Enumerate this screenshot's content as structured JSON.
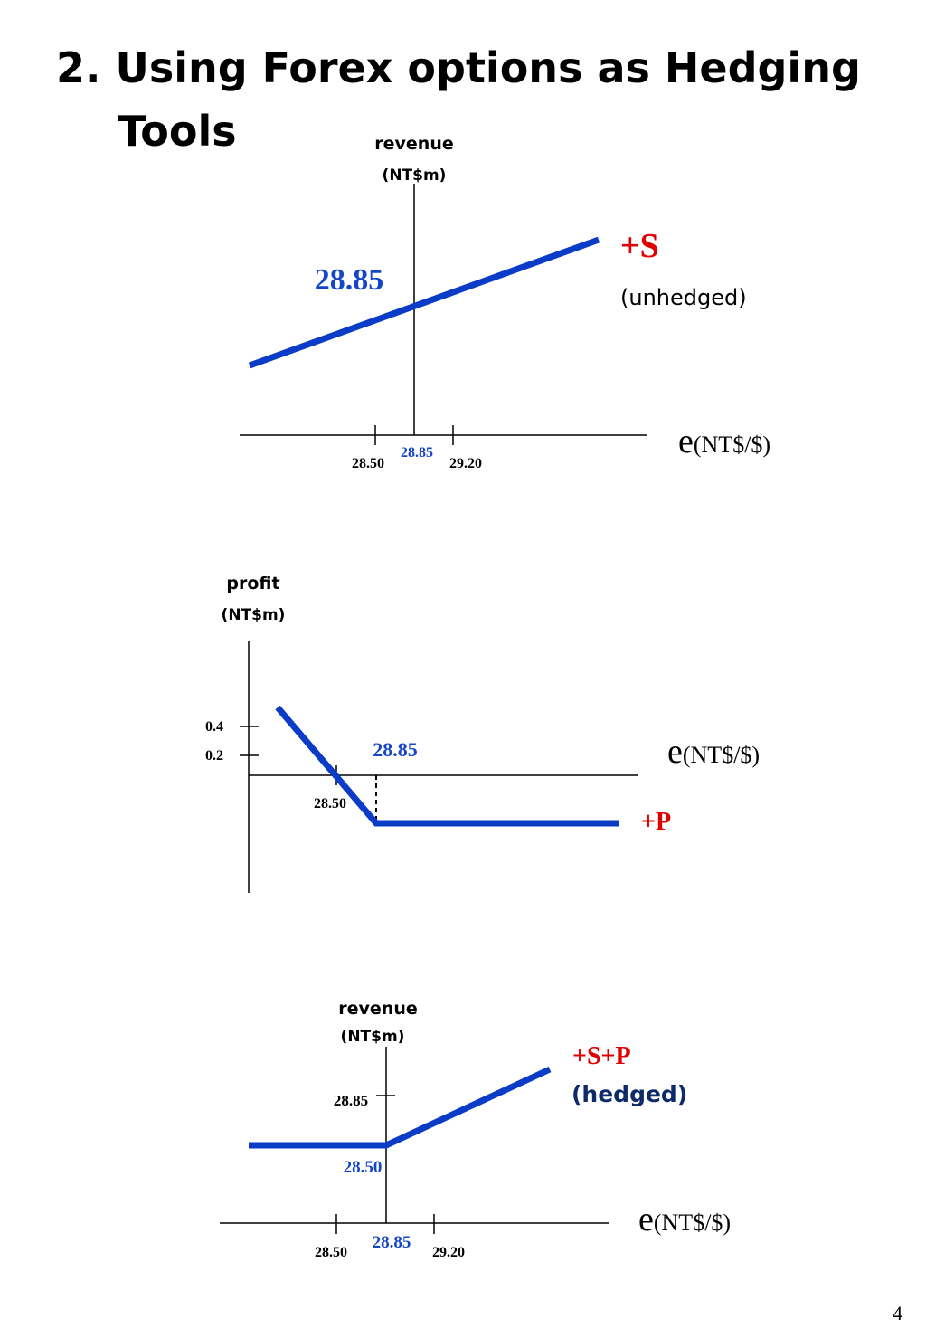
{
  "slide": {
    "title_line1": "2. Using Forex options as Hedging",
    "title_line2": "Tools",
    "page_number": "4"
  },
  "colors": {
    "line": "#0a3cc8",
    "accent_red": "#e00000",
    "accent_blue": "#1646c8",
    "hedged_navy": "#0d2b6b",
    "axis": "#000000"
  },
  "panel1": {
    "ylabel_1": "revenue",
    "ylabel_2": "(NT$m)",
    "xlabel_e": "e",
    "xlabel_unit": "(NT$/$)",
    "tick_left": "28.50",
    "tick_mid": "28.85",
    "tick_right": "29.20",
    "intercept_label": "28.85",
    "series_label": "+S",
    "series_note": "(unhedged)"
  },
  "panel2": {
    "ylabel_1": "profit",
    "ylabel_2": "(NT$m)",
    "xlabel_e": "e",
    "xlabel_unit": "(NT$/$)",
    "ytick_high": "0.4",
    "ytick_low": "0.2",
    "xtick": "28.50",
    "strike_label": "28.85",
    "series_label": "+P"
  },
  "panel3": {
    "ylabel_1": "revenue",
    "ylabel_2": "(NT$m)",
    "xlabel_e": "e",
    "xlabel_unit": "(NT$/$)",
    "ytick": "28.85",
    "floor_label": "28.50",
    "tick_left": "28.50",
    "tick_mid": "28.85",
    "tick_right": "29.20",
    "series_label": "+S+P",
    "series_note": "(hedged)"
  }
}
